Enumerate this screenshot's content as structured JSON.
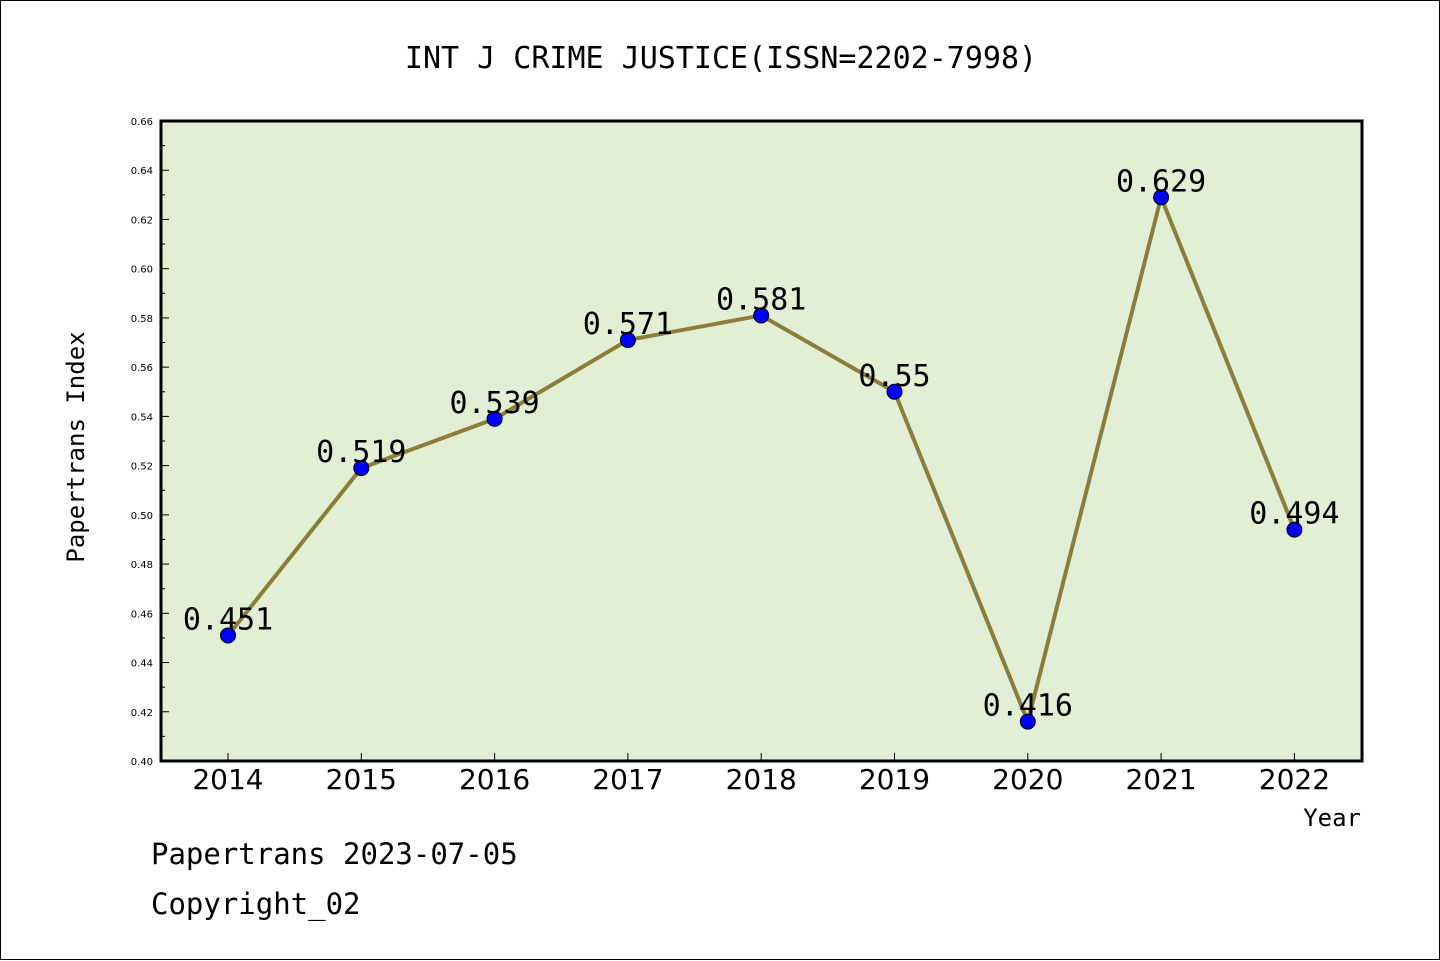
{
  "chart_data": {
    "type": "line",
    "title": "INT J CRIME JUSTICE(ISSN=2202-7998)",
    "xlabel": "Year",
    "ylabel": "Papertrans Index",
    "categories": [
      "2014",
      "2015",
      "2016",
      "2017",
      "2018",
      "2019",
      "2020",
      "2021",
      "2022"
    ],
    "series": [
      {
        "values": [
          0.451,
          0.519,
          0.539,
          0.571,
          0.581,
          0.55,
          0.416,
          0.629,
          0.494
        ],
        "labels": [
          "0.451",
          "0.519",
          "0.539",
          "0.571",
          "0.581",
          "0.55",
          "0.416",
          "0.629",
          "0.494"
        ],
        "line_color": "#8B7D3A",
        "marker_color": "#0000FF"
      }
    ],
    "ylim": [
      0.4,
      0.66
    ],
    "yticks": [
      "0.40",
      "0.42",
      "0.44",
      "0.46",
      "0.48",
      "0.50",
      "0.52",
      "0.54",
      "0.56",
      "0.58",
      "0.60",
      "0.62",
      "0.64",
      "0.66"
    ],
    "plot_background": "#E2EFD5",
    "grid": false,
    "legend": "none"
  },
  "footer": {
    "date_line": "Papertrans 2023-07-05",
    "copyright_line": "Copyright_02"
  }
}
